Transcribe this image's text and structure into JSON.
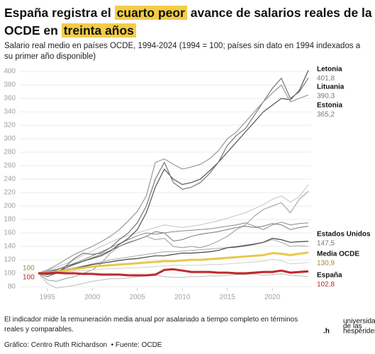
{
  "chart_data": {
    "type": "line",
    "title": [
      "España registra el ",
      "cuarto peor",
      " avance de salarios reales de la OCDE en ",
      "treinta años"
    ],
    "subtitle": "Salario real medio en países OCDE, 1994-2024 (1994 = 100; países sin dato en 1994 indexados a su primer año disponible)",
    "x": [
      1994,
      1995,
      1996,
      1997,
      1998,
      1999,
      2000,
      2001,
      2002,
      2003,
      2004,
      2005,
      2006,
      2007,
      2008,
      2009,
      2010,
      2011,
      2012,
      2013,
      2014,
      2015,
      2016,
      2017,
      2018,
      2019,
      2020,
      2021,
      2022,
      2023,
      2024
    ],
    "xlim": [
      1994,
      2024
    ],
    "xticks": [
      1995,
      2000,
      2005,
      2010,
      2015,
      2020
    ],
    "ylim": [
      80,
      400
    ],
    "yticks": [
      80,
      100,
      120,
      140,
      160,
      180,
      200,
      220,
      240,
      260,
      280,
      300,
      320,
      340,
      360,
      380,
      400
    ],
    "grid": true,
    "series": [
      {
        "name": "Letonia",
        "color": "#555555",
        "values": [
          100,
          98,
          100,
          108,
          113,
          118,
          122,
          126,
          133,
          143,
          152,
          165,
          190,
          228,
          255,
          240,
          232,
          235,
          240,
          252,
          265,
          280,
          295,
          310,
          325,
          340,
          350,
          360,
          358,
          372,
          401.8
        ],
        "value_labels": [
          null,
          null,
          null,
          null,
          null,
          null,
          null,
          null,
          null,
          null,
          null,
          null,
          null,
          null,
          null,
          null,
          null,
          null,
          null,
          null,
          null,
          null,
          null,
          null,
          null,
          null,
          null,
          null,
          null,
          null,
          "401,8"
        ]
      },
      {
        "name": "Lituania",
        "color": "#777777",
        "values": [
          100,
          95,
          100,
          110,
          122,
          130,
          128,
          130,
          138,
          150,
          160,
          175,
          200,
          240,
          265,
          235,
          225,
          228,
          235,
          248,
          265,
          290,
          305,
          315,
          335,
          355,
          375,
          390,
          360,
          370,
          390.3
        ],
        "value_labels": [
          null,
          null,
          null,
          null,
          null,
          null,
          null,
          null,
          null,
          null,
          null,
          null,
          null,
          null,
          null,
          null,
          null,
          null,
          null,
          null,
          null,
          null,
          null,
          null,
          null,
          null,
          null,
          null,
          null,
          null,
          "390,3"
        ]
      },
      {
        "name": "Estonia",
        "color": "#999999",
        "values": [
          100,
          105,
          112,
          120,
          128,
          134,
          140,
          147,
          155,
          165,
          178,
          192,
          215,
          265,
          270,
          262,
          255,
          258,
          262,
          270,
          282,
          300,
          310,
          325,
          340,
          355,
          368,
          380,
          355,
          360,
          365.2
        ],
        "value_labels": [
          null,
          null,
          null,
          null,
          null,
          null,
          null,
          null,
          null,
          null,
          null,
          null,
          null,
          null,
          null,
          null,
          null,
          null,
          null,
          null,
          null,
          null,
          null,
          null,
          null,
          null,
          null,
          null,
          null,
          null,
          "365,2"
        ]
      },
      {
        "name": "Estados Unidos",
        "color": "#444444",
        "values": [
          100,
          101,
          102,
          104,
          107,
          110,
          113,
          115,
          117,
          119,
          121,
          122,
          124,
          126,
          126,
          128,
          130,
          130,
          131,
          132,
          134,
          138,
          139,
          141,
          143,
          146,
          152,
          150,
          146,
          147,
          147.5
        ],
        "value_labels": [
          null,
          null,
          null,
          null,
          null,
          null,
          null,
          null,
          null,
          null,
          null,
          null,
          null,
          null,
          null,
          null,
          null,
          null,
          null,
          null,
          null,
          null,
          null,
          null,
          null,
          null,
          null,
          null,
          null,
          null,
          "147,5"
        ]
      },
      {
        "name": "Media OCDE",
        "color": "#e9c84a",
        "values": [
          100,
          101,
          102,
          104,
          106,
          108,
          110,
          111,
          112,
          113,
          114,
          115,
          116,
          117,
          118,
          118,
          119,
          120,
          120,
          121,
          122,
          123,
          124,
          125,
          126,
          127,
          130,
          129,
          127,
          129,
          130.9
        ],
        "value_labels": [
          "100",
          null,
          null,
          null,
          null,
          null,
          null,
          null,
          null,
          null,
          null,
          null,
          null,
          null,
          null,
          null,
          null,
          null,
          null,
          null,
          null,
          null,
          null,
          null,
          null,
          null,
          null,
          null,
          null,
          null,
          "130,9"
        ]
      },
      {
        "name": "España",
        "color": "#c0282d",
        "values": [
          100,
          100,
          101,
          100,
          100,
          99,
          99,
          98,
          98,
          98,
          97,
          97,
          97,
          98,
          105,
          106,
          104,
          102,
          102,
          102,
          101,
          101,
          100,
          100,
          101,
          102,
          102,
          104,
          101,
          102,
          102.8
        ],
        "value_labels": [
          "100",
          null,
          null,
          null,
          null,
          null,
          null,
          null,
          null,
          null,
          null,
          null,
          null,
          null,
          null,
          null,
          null,
          null,
          null,
          null,
          null,
          null,
          null,
          null,
          null,
          null,
          null,
          null,
          null,
          null,
          "102,8"
        ]
      },
      {
        "color": "#9a9a9a",
        "values": [
          100,
          90,
          88,
          92,
          95,
          100,
          105,
          115,
          130,
          140,
          145,
          150,
          155,
          150,
          152,
          140,
          138,
          140,
          138,
          142,
          148,
          155,
          165,
          172,
          185,
          195,
          200,
          205,
          190,
          210,
          222
        ]
      },
      {
        "color": "#bdbdbd",
        "values": [
          100,
          85,
          78,
          80,
          82,
          85,
          88,
          90,
          92,
          92,
          93,
          95,
          96,
          97,
          95,
          94,
          94,
          95,
          95,
          96,
          96,
          97,
          98,
          98,
          99,
          97,
          98,
          99,
          97,
          96,
          95
        ]
      },
      {
        "color": "#8a8a8a",
        "values": [
          100,
          103,
          106,
          110,
          115,
          120,
          126,
          132,
          138,
          144,
          150,
          156,
          160,
          158,
          160,
          162,
          163,
          164,
          165,
          166,
          168,
          170,
          172,
          175,
          170,
          165,
          172,
          176,
          172,
          174,
          175
        ]
      },
      {
        "color": "#c4c4c4",
        "values": [
          100,
          104,
          109,
          114,
          120,
          127,
          133,
          140,
          146,
          152,
          156,
          160,
          164,
          168,
          172,
          170,
          168,
          170,
          172,
          175,
          178,
          182,
          186,
          190,
          196,
          202,
          210,
          215,
          206,
          214,
          232
        ]
      },
      {
        "color": "#a8a8a8",
        "values": [
          100,
          102,
          104,
          106,
          108,
          111,
          114,
          117,
          120,
          122,
          124,
          126,
          128,
          130,
          132,
          132,
          133,
          134,
          135,
          136,
          137,
          138,
          140,
          142,
          144,
          146,
          150,
          146,
          140,
          141,
          140
        ]
      },
      {
        "color": "#d0d0d0",
        "values": [
          100,
          101,
          101,
          102,
          103,
          104,
          105,
          106,
          107,
          107,
          108,
          108,
          109,
          110,
          111,
          112,
          112,
          112,
          112,
          113,
          113,
          114,
          115,
          116,
          117,
          118,
          121,
          119,
          114,
          115,
          116
        ]
      },
      {
        "color": "#7a7a7a",
        "values": [
          100,
          102,
          105,
          110,
          114,
          118,
          123,
          128,
          134,
          140,
          146,
          150,
          155,
          162,
          160,
          148,
          150,
          155,
          158,
          160,
          162,
          165,
          168,
          170,
          168,
          170,
          174,
          172,
          165,
          168,
          170
        ]
      }
    ],
    "footnote": "El indicador mide la remuneración media anual por asalariado a tiempo completo en términos reales y comparables.",
    "source": "Gráfico: Centro Ruth Richardson  • Fuente: OCDE",
    "logo": {
      "mark": ".h",
      "lines": [
        "universidad",
        "de las",
        "hespérides"
      ]
    }
  }
}
